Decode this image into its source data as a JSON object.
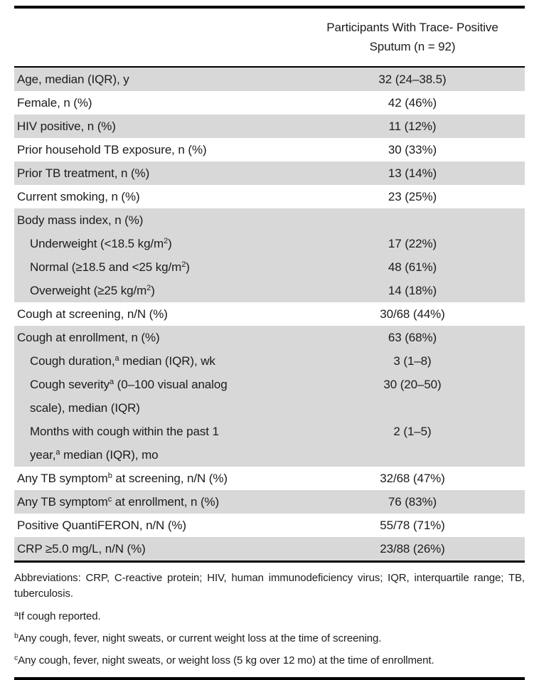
{
  "colors": {
    "row_shade": "#d8d8d8",
    "rule": "#000000",
    "text": "#1c1c1c"
  },
  "table": {
    "header": {
      "line1": "Participants With Trace- Positive",
      "line2": "Sputum (n = 92)"
    },
    "rows": [
      {
        "label_pre": "Age, median (IQR), y",
        "label_sup": "",
        "label_post": "",
        "value": "32 (24–38.5)"
      },
      {
        "label_pre": "Female, n (%)",
        "label_sup": "",
        "label_post": "",
        "value": "42 (46%)"
      },
      {
        "label_pre": "HIV positive, n (%)",
        "label_sup": "",
        "label_post": "",
        "value": "11 (12%)"
      },
      {
        "label_pre": "Prior household TB exposure, n (%)",
        "label_sup": "",
        "label_post": "",
        "value": "30 (33%)"
      },
      {
        "label_pre": "Prior TB treatment, n (%)",
        "label_sup": "",
        "label_post": "",
        "value": "13 (14%)"
      },
      {
        "label_pre": "Current smoking, n (%)",
        "label_sup": "",
        "label_post": "",
        "value": "23 (25%)"
      },
      {
        "label_pre": "Body mass index, n (%)",
        "label_sup": "",
        "label_post": "",
        "value": ""
      },
      {
        "label_pre": "Underweight (<18.5 kg/m",
        "label_sup": "2",
        "label_post": ")",
        "value": "17 (22%)"
      },
      {
        "label_pre": "Normal (≥18.5 and <25 kg/m",
        "label_sup": "2",
        "label_post": ")",
        "value": "48 (61%)"
      },
      {
        "label_pre": "Overweight (≥25 kg/m",
        "label_sup": "2",
        "label_post": ")",
        "value": "14 (18%)"
      },
      {
        "label_pre": "Cough at screening, n/N (%)",
        "label_sup": "",
        "label_post": "",
        "value": "30/68 (44%)"
      },
      {
        "label_pre": "Cough at enrollment, n (%)",
        "label_sup": "",
        "label_post": "",
        "value": "63 (68%)"
      },
      {
        "label_pre": "Cough duration,",
        "label_sup": "a",
        "label_post": " median (IQR), wk",
        "value": "3 (1–8)"
      },
      {
        "label_pre": "Cough severity",
        "label_sup": "a",
        "label_post": " (0–100 visual analog\nscale), median (IQR)",
        "value": "30 (20–50)"
      },
      {
        "label_pre": "Months with cough within the past 1\nyear,",
        "label_sup": "a",
        "label_post": " median (IQR), mo",
        "value": "2 (1–5)"
      },
      {
        "label_pre": "Any TB symptom",
        "label_sup": "b",
        "label_post": " at screening, n/N (%)",
        "value": "32/68 (47%)"
      },
      {
        "label_pre": "Any TB symptom",
        "label_sup": "c",
        "label_post": " at enrollment, n (%)",
        "value": "76 (83%)"
      },
      {
        "label_pre": "Positive QuantiFERON, n/N (%)",
        "label_sup": "",
        "label_post": "",
        "value": "55/78 (71%)"
      },
      {
        "label_pre": "CRP ≥5.0 mg/L, n/N (%)",
        "label_sup": "",
        "label_post": "",
        "value": "23/88 (26%)"
      }
    ]
  },
  "footnotes": {
    "abbreviations": "Abbreviations: CRP, C-reactive protein; HIV, human immunodeficiency virus; IQR, interquartile range; TB, tuberculosis.",
    "a": {
      "marker": "a",
      "text": "If cough reported."
    },
    "b": {
      "marker": "b",
      "text": "Any cough, fever, night sweats, or current weight loss at the time of screening."
    },
    "c": {
      "marker": "c",
      "text": "Any cough, fever, night sweats, or weight loss (5 kg over 12 mo) at the time of enrollment."
    }
  }
}
